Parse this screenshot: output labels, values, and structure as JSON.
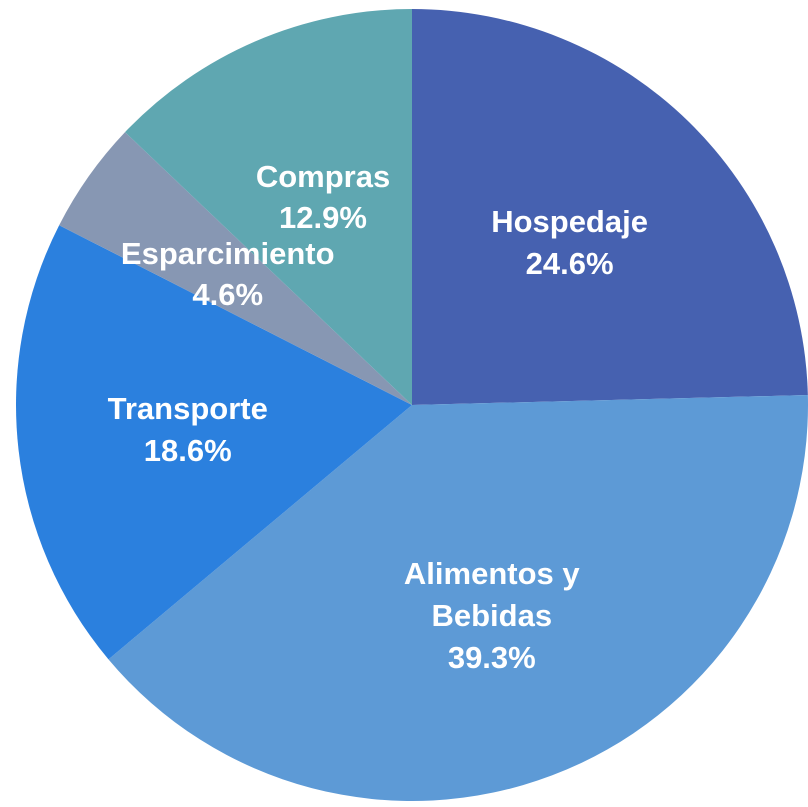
{
  "chart_data": {
    "type": "pie",
    "categories": [
      "Hospedaje",
      "Alimentos y Bebidas",
      "Transporte",
      "Esparcimiento",
      "Compras"
    ],
    "values": [
      24.6,
      39.3,
      18.6,
      4.6,
      12.9
    ],
    "value_labels": [
      "24.6%",
      "39.3%",
      "18.6%",
      "4.6%",
      "12.9%"
    ],
    "colors": [
      "#4661b0",
      "#5d9ad6",
      "#2b80de",
      "#8797b3",
      "#5fa7b1"
    ]
  }
}
